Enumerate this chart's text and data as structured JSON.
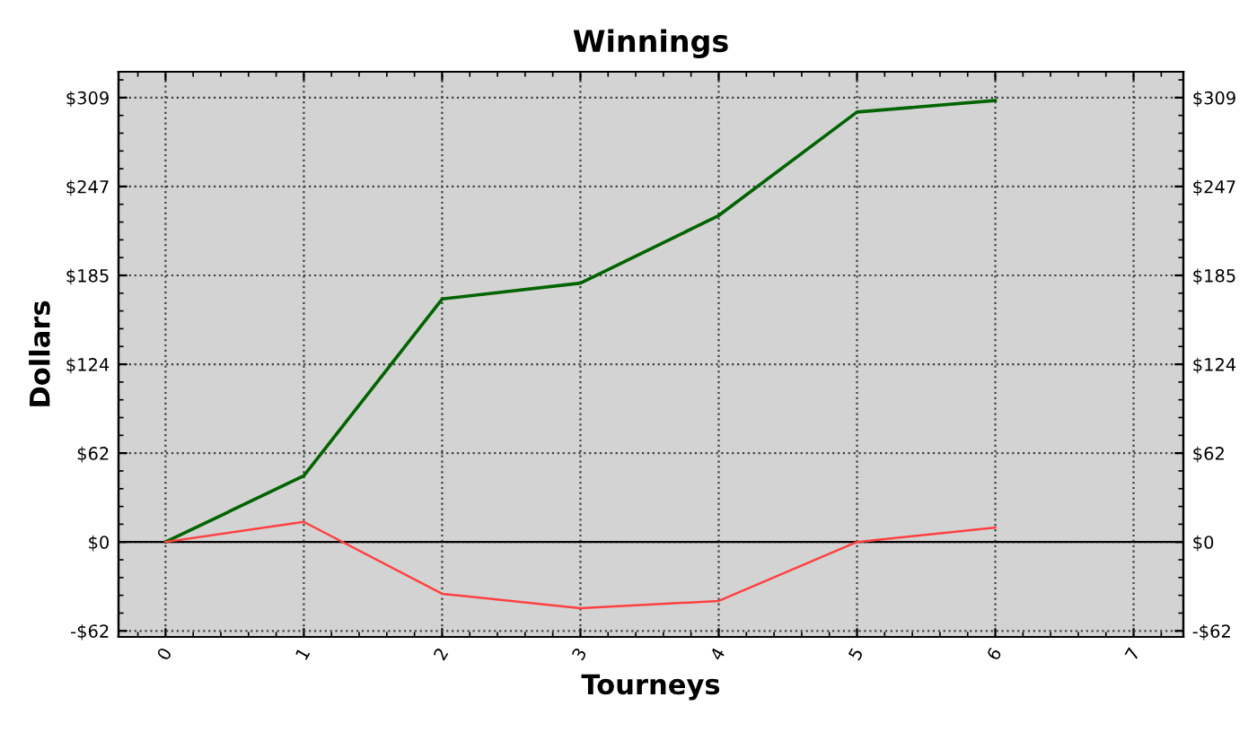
{
  "chart_data": {
    "type": "line",
    "title": "Winnings",
    "xlabel": "Tourneys",
    "ylabel": "Dollars",
    "x": [
      0,
      1,
      2,
      3,
      4,
      5,
      6
    ],
    "series": [
      {
        "color": "#006400",
        "values": [
          0,
          46,
          169,
          180,
          227,
          299,
          307
        ]
      },
      {
        "color": "#ff4040",
        "values": [
          0,
          14,
          -36,
          -46,
          -41,
          0,
          10
        ]
      }
    ],
    "xlim": [
      -0.34,
      7.36
    ],
    "xticks": [
      0,
      1,
      2,
      3,
      4,
      5,
      6,
      7
    ],
    "ylim": [
      -66,
      327
    ],
    "yticks": [
      {
        "value": -61.8,
        "label": "-$62"
      },
      {
        "value": 0,
        "label": "$0"
      },
      {
        "value": 61.8,
        "label": "$62"
      },
      {
        "value": 123.6,
        "label": "$124"
      },
      {
        "value": 185.4,
        "label": "$185"
      },
      {
        "value": 247.2,
        "label": "$247"
      },
      {
        "value": 309,
        "label": "$309"
      }
    ],
    "y2lim": [
      -66,
      327
    ],
    "y2ticks": [
      {
        "value": -61.8,
        "label": "-$62"
      },
      {
        "value": 0,
        "label": "$0"
      },
      {
        "value": 61.8,
        "label": "$62"
      },
      {
        "value": 123.6,
        "label": "$124"
      },
      {
        "value": 185.4,
        "label": "$185"
      },
      {
        "value": 247.2,
        "label": "$247"
      },
      {
        "value": 309,
        "label": "$309"
      }
    ],
    "ref_lines": [
      {
        "axis": "y",
        "value": 0,
        "color": "#000000"
      }
    ],
    "grid": true,
    "marker": "none",
    "line_style": "solid",
    "legend": false
  }
}
